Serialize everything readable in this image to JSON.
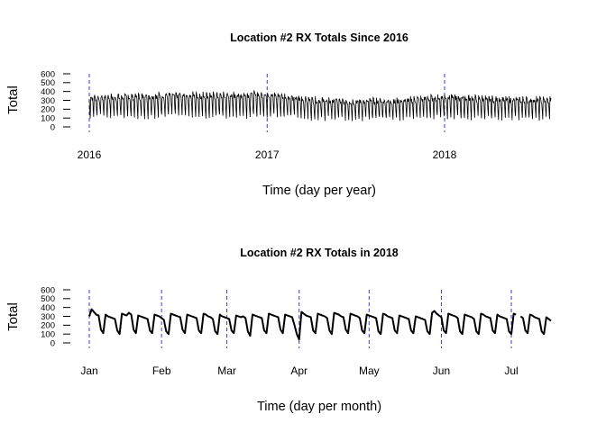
{
  "chart_data": [
    {
      "type": "line",
      "title": "Location #2 RX Totals Since 2016",
      "xlabel": "Time (day per year)",
      "ylabel": "Total",
      "ylim": [
        0,
        600
      ],
      "y_ticks": [
        "0",
        "100",
        "200",
        "300",
        "400",
        "500",
        "600"
      ],
      "x_range": [
        "2016-01-01",
        "2018-08-08"
      ],
      "x_ticks": [
        {
          "label": "2016",
          "date": "2016-01-01"
        },
        {
          "label": "2017",
          "date": "2017-01-01"
        },
        {
          "label": "2018",
          "date": "2018-01-01"
        }
      ],
      "vlines": [
        "2016-01-01",
        "2017-01-01",
        "2018-01-01"
      ],
      "vline_color": "#3b3bd6",
      "line_color": "#000000",
      "pattern": "daily totals with strong weekly cycle (low on weekends)",
      "weekly_profile": {
        "peak": 330,
        "trough": 110
      },
      "series": [
        {
          "values_by_month": [
            {
              "month": "2016-01",
              "peak": 350,
              "trough": 120
            },
            {
              "month": "2016-04",
              "peak": 360,
              "trough": 110
            },
            {
              "month": "2016-07",
              "peak": 380,
              "trough": 120
            },
            {
              "month": "2016-10",
              "peak": 370,
              "trough": 115
            },
            {
              "month": "2017-01",
              "peak": 390,
              "trough": 130
            },
            {
              "month": "2017-04",
              "peak": 320,
              "trough": 100
            },
            {
              "month": "2017-07",
              "peak": 300,
              "trough": 90
            },
            {
              "month": "2017-10",
              "peak": 310,
              "trough": 95
            },
            {
              "month": "2018-01",
              "peak": 360,
              "trough": 110
            },
            {
              "month": "2018-04",
              "peak": 330,
              "trough": 100
            },
            {
              "month": "2018-07",
              "peak": 320,
              "trough": 100
            }
          ]
        }
      ]
    },
    {
      "type": "line",
      "title": "Location #2 RX Totals in 2018",
      "xlabel": "Time (day per month)",
      "ylabel": "Total",
      "ylim": [
        0,
        600
      ],
      "y_ticks": [
        "0",
        "100",
        "200",
        "300",
        "400",
        "500",
        "600"
      ],
      "x_range": [
        "2018-01-01",
        "2018-07-18"
      ],
      "x_ticks": [
        {
          "label": "Jan",
          "date": "2018-01-01"
        },
        {
          "label": "Feb",
          "date": "2018-02-01"
        },
        {
          "label": "Mar",
          "date": "2018-03-01"
        },
        {
          "label": "Apr",
          "date": "2018-04-01"
        },
        {
          "label": "May",
          "date": "2018-05-01"
        },
        {
          "label": "Jun",
          "date": "2018-06-01"
        },
        {
          "label": "Jul",
          "date": "2018-07-01"
        }
      ],
      "vlines": [
        "2018-01-01",
        "2018-02-01",
        "2018-03-01",
        "2018-04-01",
        "2018-05-01",
        "2018-06-01",
        "2018-07-01"
      ],
      "vline_color": "#3b3bd6",
      "line_color": "#000000",
      "series": [
        {
          "weekly_values": [
            {
              "week_start": "2018-01-01",
              "days": [
                300,
                380,
                350,
                320,
                310,
                150,
                110
              ]
            },
            {
              "week_start": "2018-01-08",
              "days": [
                320,
                300,
                290,
                280,
                270,
                140,
                100
              ]
            },
            {
              "week_start": "2018-01-15",
              "days": [
                330,
                320,
                310,
                340,
                320,
                150,
                110
              ]
            },
            {
              "week_start": "2018-01-22",
              "days": [
                310,
                300,
                290,
                280,
                270,
                140,
                110
              ]
            },
            {
              "week_start": "2018-01-29",
              "days": [
                320,
                310,
                300,
                280,
                260,
                130,
                100
              ]
            },
            {
              "week_start": "2018-02-05",
              "days": [
                330,
                320,
                310,
                300,
                290,
                150,
                110
              ]
            },
            {
              "week_start": "2018-02-12",
              "days": [
                320,
                310,
                300,
                290,
                280,
                140,
                110
              ]
            },
            {
              "week_start": "2018-02-19",
              "days": [
                330,
                320,
                300,
                290,
                270,
                130,
                100
              ]
            },
            {
              "week_start": "2018-02-26",
              "days": [
                320,
                300,
                290,
                280,
                270,
                140,
                110
              ]
            },
            {
              "week_start": "2018-03-05",
              "days": [
                310,
                300,
                290,
                300,
                280,
                130,
                80
              ]
            },
            {
              "week_start": "2018-03-12",
              "days": [
                320,
                310,
                300,
                290,
                280,
                140,
                110
              ]
            },
            {
              "week_start": "2018-03-19",
              "days": [
                330,
                320,
                310,
                300,
                290,
                150,
                110
              ]
            },
            {
              "week_start": "2018-03-26",
              "days": [
                320,
                310,
                300,
                290,
                200,
                100,
                40
              ]
            },
            {
              "week_start": "2018-04-02",
              "days": [
                350,
                330,
                310,
                300,
                290,
                140,
                110
              ]
            },
            {
              "week_start": "2018-04-09",
              "days": [
                330,
                320,
                310,
                300,
                280,
                140,
                100
              ]
            },
            {
              "week_start": "2018-04-16",
              "days": [
                340,
                330,
                320,
                300,
                290,
                150,
                110
              ]
            },
            {
              "week_start": "2018-04-23",
              "days": [
                330,
                320,
                310,
                300,
                280,
                140,
                110
              ]
            },
            {
              "week_start": "2018-04-30",
              "days": [
                320,
                310,
                300,
                290,
                280,
                130,
                100
              ]
            },
            {
              "week_start": "2018-05-07",
              "days": [
                330,
                320,
                300,
                290,
                280,
                140,
                110
              ]
            },
            {
              "week_start": "2018-05-14",
              "days": [
                310,
                300,
                290,
                280,
                270,
                140,
                110
              ]
            },
            {
              "week_start": "2018-05-21",
              "days": [
                300,
                290,
                280,
                270,
                260,
                130,
                100
              ]
            },
            {
              "week_start": "2018-05-28",
              "days": [
                340,
                360,
                330,
                310,
                290,
                140,
                110
              ]
            },
            {
              "week_start": "2018-06-04",
              "days": [
                330,
                320,
                310,
                300,
                280,
                130,
                100
              ]
            },
            {
              "week_start": "2018-06-11",
              "days": [
                320,
                310,
                300,
                290,
                270,
                130,
                100
              ]
            },
            {
              "week_start": "2018-06-18",
              "days": [
                330,
                320,
                300,
                290,
                280,
                140,
                110
              ]
            },
            {
              "week_start": "2018-06-25",
              "days": [
                320,
                300,
                290,
                280,
                270,
                130,
                100
              ]
            },
            {
              "week_start": "2018-07-02",
              "days": [
                330,
                320,
                null,
                300,
                280,
                140,
                110
              ]
            },
            {
              "week_start": "2018-07-09",
              "days": [
                320,
                310,
                290,
                280,
                270,
                130,
                100
              ]
            },
            {
              "week_start": "2018-07-16",
              "days": [
                290,
                270,
                250
              ]
            }
          ]
        }
      ]
    }
  ]
}
